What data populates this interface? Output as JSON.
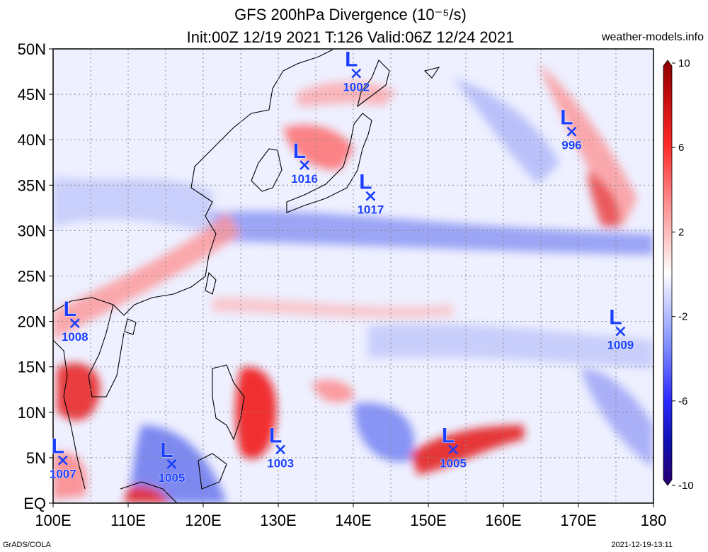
{
  "title": "GFS 200hPa Divergence (10⁻⁵/s)",
  "subtitle": "Init:00Z 12/19 2021 T:126 Valid:06Z 12/24 2021",
  "site": "weather-models.info",
  "footer": {
    "left": "GrADS/COLA",
    "right": "2021-12-19-13:11"
  },
  "axes": {
    "lat_labels": [
      "50N",
      "45N",
      "40N",
      "35N",
      "30N",
      "25N",
      "20N",
      "15N",
      "10N",
      "5N",
      "EQ"
    ],
    "lon_labels": [
      "100E",
      "110E",
      "120E",
      "130E",
      "140E",
      "150E",
      "160E",
      "170E",
      "180"
    ]
  },
  "colorbar": {
    "labels": [
      "10",
      "6",
      "2",
      "-2",
      "-6",
      "-10"
    ],
    "colors_top_to_bottom": [
      "#8b0000",
      "#cc1010",
      "#ff2020",
      "#ff7070",
      "#ffb0b0",
      "#ffffff",
      "#b0b8ff",
      "#7080ff",
      "#2020ff",
      "#1010b0",
      "#2a0070"
    ]
  },
  "lows": [
    {
      "label": "L",
      "pressure": "1002",
      "lon": 140.4,
      "lat": 47.3
    },
    {
      "label": "L",
      "pressure": "996",
      "lon": 169.1,
      "lat": 40.9
    },
    {
      "label": "L",
      "pressure": "1016",
      "lon": 133.5,
      "lat": 37.2
    },
    {
      "label": "L",
      "pressure": "1017",
      "lon": 142.3,
      "lat": 33.8
    },
    {
      "label": "L",
      "pressure": "1008",
      "lon": 102.9,
      "lat": 19.8
    },
    {
      "label": "L",
      "pressure": "1009",
      "lon": 175.6,
      "lat": 18.9
    },
    {
      "label": "L",
      "pressure": "1003",
      "lon": 130.3,
      "lat": 5.9
    },
    {
      "label": "L",
      "pressure": "1005",
      "lon": 153.3,
      "lat": 5.9
    },
    {
      "label": "L",
      "pressure": "1007",
      "lon": 101.3,
      "lat": 4.7
    },
    {
      "label": "L",
      "pressure": "1005",
      "lon": 115.8,
      "lat": 4.3
    }
  ],
  "colors": {
    "low_marker": "#1a3fff",
    "grid": "#888888"
  }
}
